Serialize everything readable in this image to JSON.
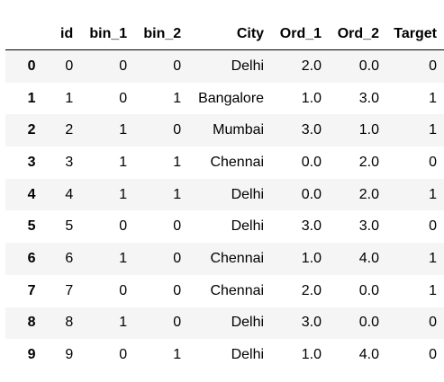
{
  "table": {
    "columns": [
      "",
      "id",
      "bin_1",
      "bin_2",
      "City",
      "Ord_1",
      "Ord_2",
      "Target"
    ],
    "rows": [
      {
        "index": "0",
        "id": "0",
        "bin_1": "0",
        "bin_2": "0",
        "City": "Delhi",
        "Ord_1": "2.0",
        "Ord_2": "0.0",
        "Target": "0"
      },
      {
        "index": "1",
        "id": "1",
        "bin_1": "0",
        "bin_2": "1",
        "City": "Bangalore",
        "Ord_1": "1.0",
        "Ord_2": "3.0",
        "Target": "1"
      },
      {
        "index": "2",
        "id": "2",
        "bin_1": "1",
        "bin_2": "0",
        "City": "Mumbai",
        "Ord_1": "3.0",
        "Ord_2": "1.0",
        "Target": "1"
      },
      {
        "index": "3",
        "id": "3",
        "bin_1": "1",
        "bin_2": "1",
        "City": "Chennai",
        "Ord_1": "0.0",
        "Ord_2": "2.0",
        "Target": "0"
      },
      {
        "index": "4",
        "id": "4",
        "bin_1": "1",
        "bin_2": "1",
        "City": "Delhi",
        "Ord_1": "0.0",
        "Ord_2": "2.0",
        "Target": "1"
      },
      {
        "index": "5",
        "id": "5",
        "bin_1": "0",
        "bin_2": "0",
        "City": "Delhi",
        "Ord_1": "3.0",
        "Ord_2": "3.0",
        "Target": "0"
      },
      {
        "index": "6",
        "id": "6",
        "bin_1": "1",
        "bin_2": "0",
        "City": "Chennai",
        "Ord_1": "1.0",
        "Ord_2": "4.0",
        "Target": "1"
      },
      {
        "index": "7",
        "id": "7",
        "bin_1": "0",
        "bin_2": "0",
        "City": "Chennai",
        "Ord_1": "2.0",
        "Ord_2": "0.0",
        "Target": "1"
      },
      {
        "index": "8",
        "id": "8",
        "bin_1": "1",
        "bin_2": "0",
        "City": "Delhi",
        "Ord_1": "3.0",
        "Ord_2": "0.0",
        "Target": "0"
      },
      {
        "index": "9",
        "id": "9",
        "bin_1": "0",
        "bin_2": "1",
        "City": "Delhi",
        "Ord_1": "1.0",
        "Ord_2": "4.0",
        "Target": "0"
      }
    ]
  },
  "colors": {
    "stripe": "#f5f5f5",
    "background": "#ffffff",
    "header_border": "#000000"
  }
}
